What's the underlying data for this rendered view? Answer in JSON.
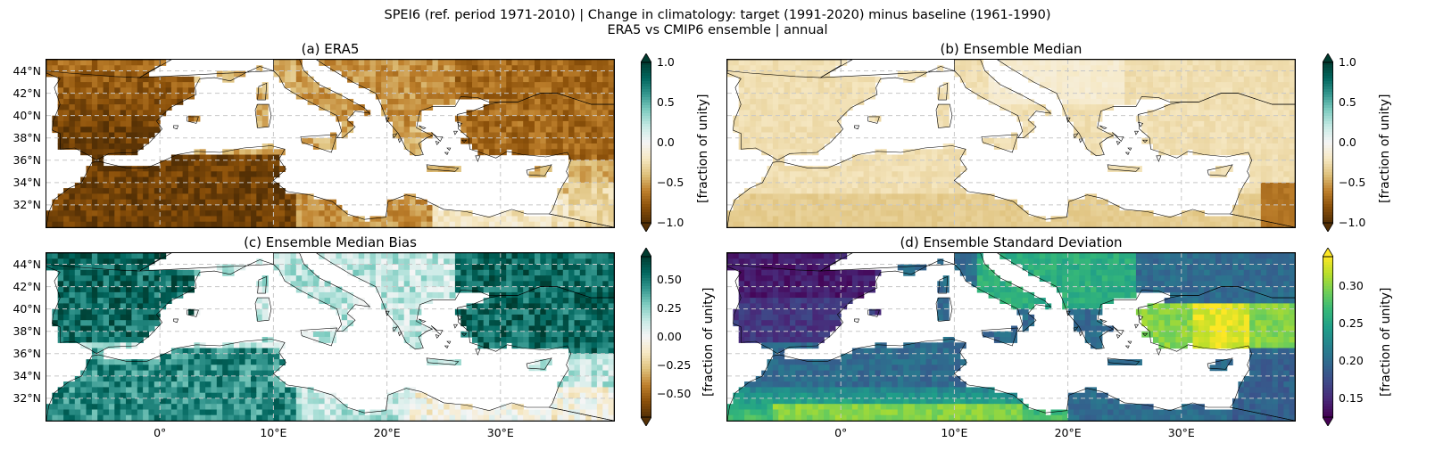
{
  "figure": {
    "title_line1": "SPEI6 (ref. period 1971-2010) | Change in climatology: target (1991-2020) minus baseline (1961-1990)",
    "title_line2": "ERA5 vs CMIP6 ensemble | annual"
  },
  "panels": [
    {
      "id": "a",
      "title": "(a) ERA5",
      "cmap": "BrBG",
      "show_xticks": false,
      "field": "era5",
      "colorbar": {
        "label": "[fraction of unity]",
        "vmin": -1.0,
        "vmax": 1.0,
        "ticks": [
          "1.0",
          "0.5",
          "0.0",
          "−0.5",
          "−1.0"
        ],
        "tick_values": [
          1.0,
          0.5,
          0.0,
          -0.5,
          -1.0
        ]
      }
    },
    {
      "id": "b",
      "title": "(b) Ensemble Median",
      "cmap": "BrBG",
      "show_xticks": false,
      "field": "median",
      "colorbar": {
        "label": "[fraction of unity]",
        "vmin": -1.0,
        "vmax": 1.0,
        "ticks": [
          "1.0",
          "0.5",
          "0.0",
          "−0.5",
          "−1.0"
        ],
        "tick_values": [
          1.0,
          0.5,
          0.0,
          -0.5,
          -1.0
        ]
      }
    },
    {
      "id": "c",
      "title": "(c) Ensemble Median Bias",
      "cmap": "BrBG",
      "show_xticks": true,
      "field": "bias",
      "colorbar": {
        "label": "[fraction of unity]",
        "vmin": -0.7,
        "vmax": 0.7,
        "ticks": [
          "0.50",
          "0.25",
          "0.00",
          "−0.25",
          "−0.50"
        ],
        "tick_values": [
          0.5,
          0.25,
          0.0,
          -0.25,
          -0.5
        ]
      }
    },
    {
      "id": "d",
      "title": "(d) Ensemble Standard Deviation",
      "cmap": "viridis",
      "show_xticks": true,
      "field": "std",
      "colorbar": {
        "label": "[fraction of unity]",
        "vmin": 0.125,
        "vmax": 0.34,
        "ticks": [
          "0.30",
          "0.25",
          "0.20",
          "0.15"
        ],
        "tick_values": [
          0.3,
          0.25,
          0.2,
          0.15
        ]
      }
    }
  ],
  "axes": {
    "lat_labels": [
      "44°N",
      "42°N",
      "40°N",
      "38°N",
      "36°N",
      "34°N",
      "32°N"
    ],
    "lat_values": [
      44,
      42,
      40,
      38,
      36,
      34,
      32
    ],
    "lon_labels": [
      "0°",
      "10°E",
      "20°E",
      "30°E"
    ],
    "lon_values": [
      0,
      10,
      20,
      30
    ],
    "lon_range": [
      -10,
      40
    ],
    "lat_range": [
      30,
      45
    ],
    "gridlines": true,
    "projection": "PlateCarree"
  },
  "colors": {
    "brbg": [
      "#543005",
      "#8c510a",
      "#bf812d",
      "#dfc27d",
      "#f6e8c3",
      "#f5f5f5",
      "#c7eae5",
      "#80cdc1",
      "#35978f",
      "#01665e",
      "#003c30"
    ],
    "viridis": [
      "#440154",
      "#482878",
      "#3e4a89",
      "#31688e",
      "#26828e",
      "#1f9e89",
      "#35b779",
      "#6ece58",
      "#b5de2b",
      "#fde725"
    ],
    "coast": "#000000",
    "grid": "#c8c8c8",
    "missing": "#ffffff"
  }
}
